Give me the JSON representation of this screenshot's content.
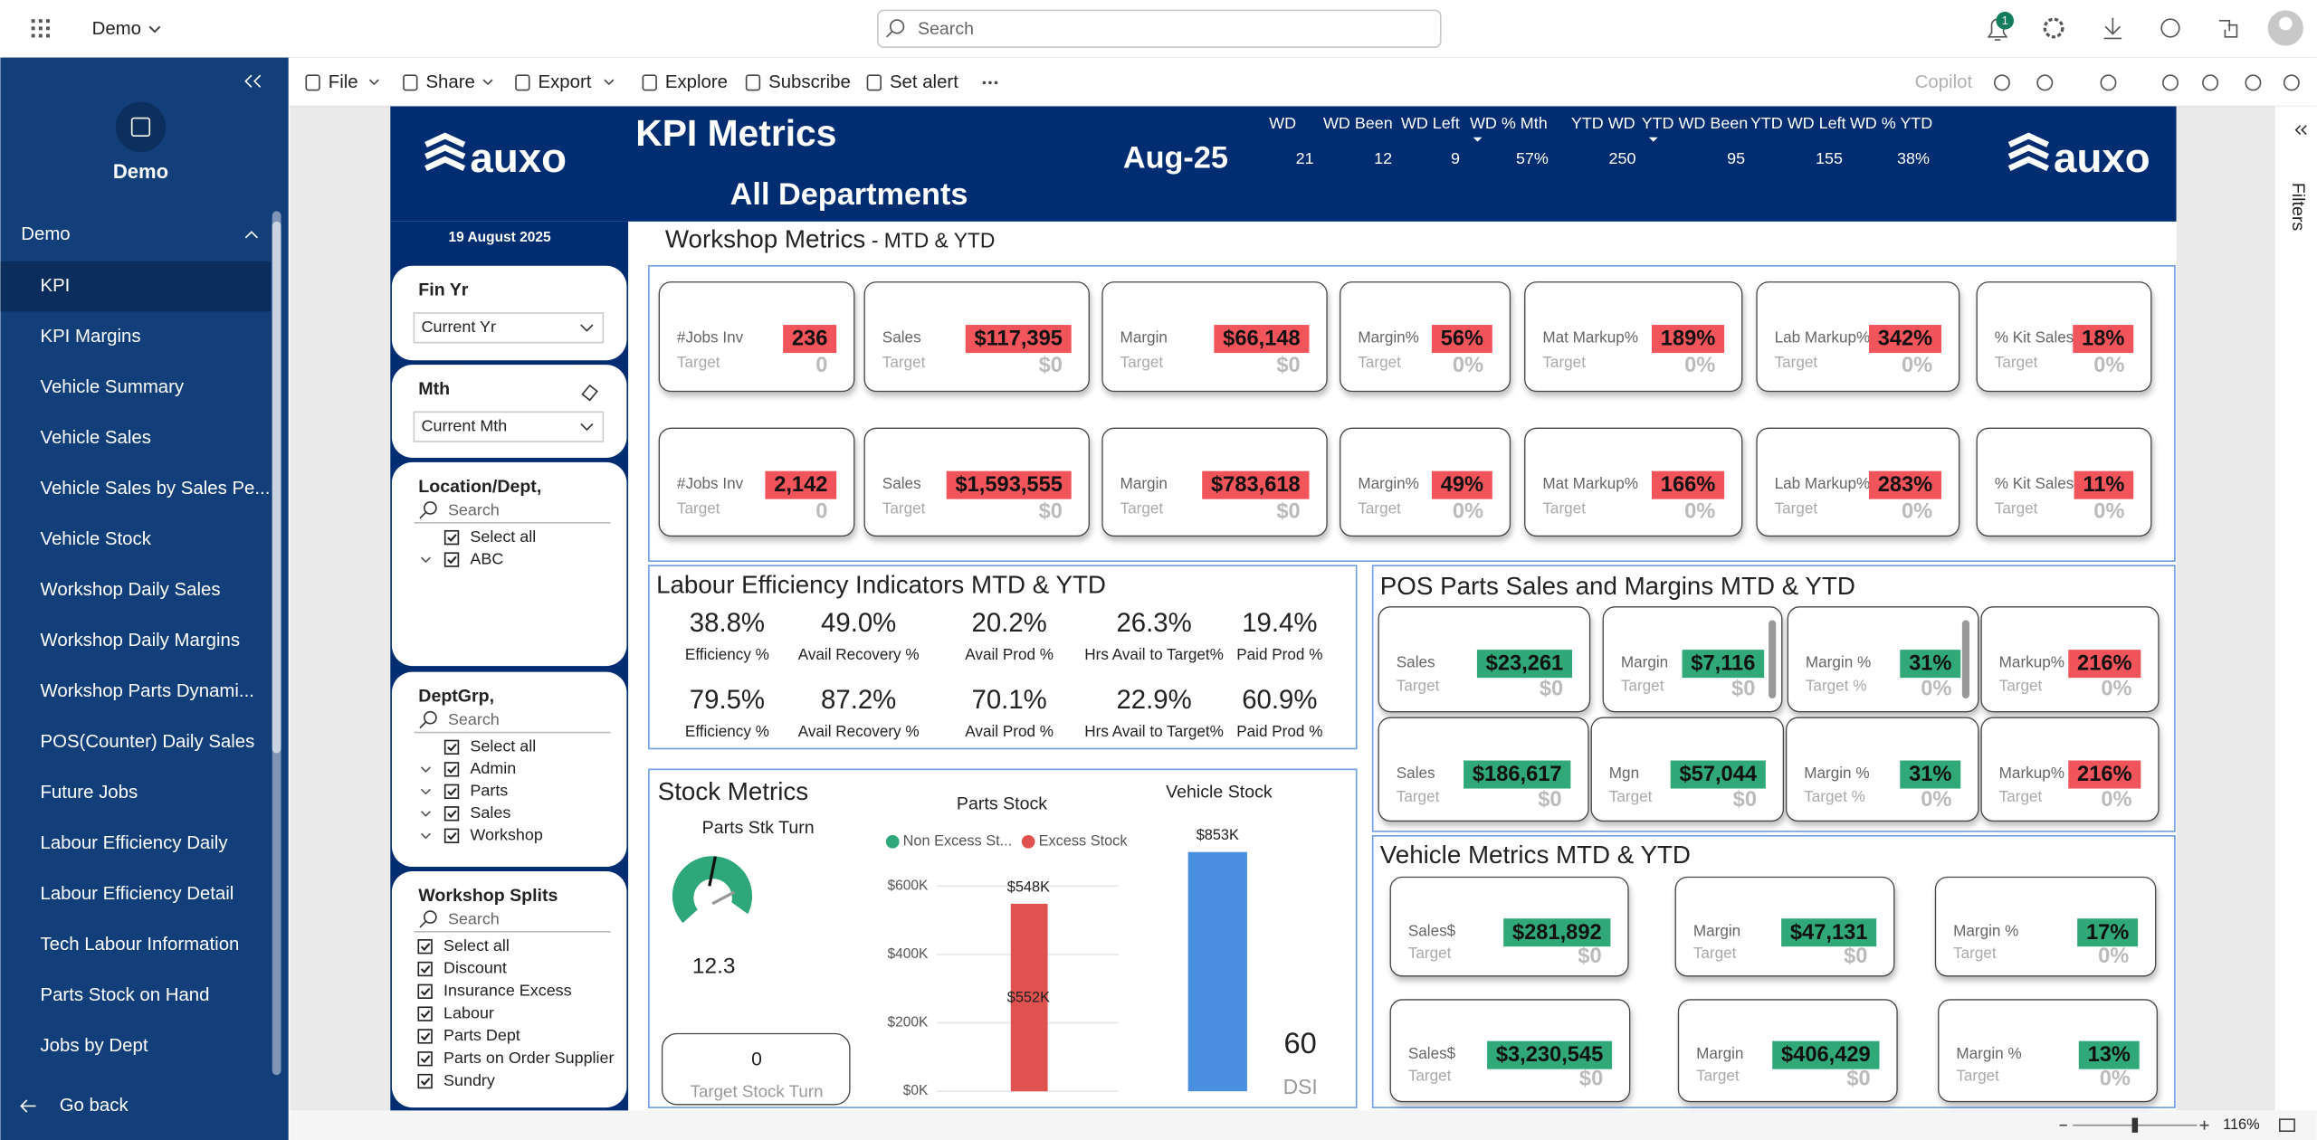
{
  "app": {
    "workspace": "Demo",
    "search": "Search",
    "notifications": 1,
    "zoom": "116%",
    "filters": "Filters",
    "toolbar": [
      "File",
      "Share",
      "Export",
      "Explore",
      "Subscribe",
      "Set alert"
    ],
    "copilot": "Copilot"
  },
  "nav": {
    "title": "Demo",
    "section": "Demo",
    "items": [
      "KPI",
      "KPI Margins",
      "Vehicle Summary",
      "Vehicle Sales",
      "Vehicle Sales by Sales Pe...",
      "Vehicle Stock",
      "Workshop Daily Sales",
      "Workshop Daily Margins",
      "Workshop Parts Dynami...",
      "POS(Counter) Daily Sales",
      "Future Jobs",
      "Labour Efficiency Daily",
      "Labour Efficiency Detail",
      "Tech Labour Information",
      "Parts Stock on Hand",
      "Jobs by Dept"
    ],
    "back": "Go back"
  },
  "report": {
    "logo": "auxo",
    "title": "KPI Metrics",
    "subtitle": "All Departments",
    "period": "Aug-25",
    "date": "19 August 2025",
    "wd": {
      "headers": [
        "WD",
        "WD Been",
        "WD Left",
        "WD % Mth",
        "YTD WD",
        "YTD WD Been",
        "YTD WD Left",
        "WD % YTD"
      ],
      "values": [
        21,
        12,
        9,
        "57%",
        250,
        95,
        155,
        "38%"
      ]
    },
    "slicers": [
      {
        "title": "Fin Yr",
        "selected": "Current Yr"
      },
      {
        "title": "Mth",
        "selected": "Current Mth"
      },
      {
        "title": "Location/Dept,",
        "search": "Search",
        "options": [
          "Select all",
          "ABC"
        ]
      },
      {
        "title": "DeptGrp,",
        "search": "Search",
        "options": [
          "Select all",
          "Admin",
          "Parts",
          "Sales",
          "Workshop"
        ]
      },
      {
        "title": "Workshop Splits",
        "search": "Search",
        "options": [
          "Select all",
          "Discount",
          "Insurance Excess",
          "Labour",
          "Parts Dept",
          "Parts on Order Supplier",
          "Sundry"
        ]
      }
    ],
    "workshop": {
      "title": "Workshop Metrics",
      "subtitle": "- MTD & YTD",
      "rows": [
        [
          {
            "label": "#Jobs Inv",
            "value": "236",
            "color": "#f2545b",
            "target_label": "Target",
            "target": "0"
          },
          {
            "label": "Sales",
            "value": "$117,395",
            "color": "#f2545b",
            "target_label": "Target",
            "target": "$0"
          },
          {
            "label": "Margin",
            "value": "$66,148",
            "color": "#f2545b",
            "target_label": "Target",
            "target": "$0"
          },
          {
            "label": "Margin%",
            "value": "56%",
            "color": "#f2545b",
            "target_label": "Target",
            "target": "0%"
          },
          {
            "label": "Mat Markup%",
            "value": "189%",
            "color": "#f2545b",
            "target_label": "Target",
            "target": "0%"
          },
          {
            "label": "Lab Markup%",
            "value": "342%",
            "color": "#f2545b",
            "target_label": "Target",
            "target": "0%"
          },
          {
            "label": "% Kit Sales",
            "value": "18%",
            "color": "#f2545b",
            "target_label": "Target",
            "target": "0%"
          }
        ],
        [
          {
            "label": "#Jobs Inv",
            "value": "2,142",
            "color": "#f2545b",
            "target_label": "Target",
            "target": "0"
          },
          {
            "label": "Sales",
            "value": "$1,593,555",
            "color": "#f2545b",
            "target_label": "Target",
            "target": "$0"
          },
          {
            "label": "Margin",
            "value": "$783,618",
            "color": "#f2545b",
            "target_label": "Target",
            "target": "$0"
          },
          {
            "label": "Margin%",
            "value": "49%",
            "color": "#f2545b",
            "target_label": "Target",
            "target": "0%"
          },
          {
            "label": "Mat Markup%",
            "value": "166%",
            "color": "#f2545b",
            "target_label": "Target",
            "target": "0%"
          },
          {
            "label": "Lab Markup%",
            "value": "283%",
            "color": "#f2545b",
            "target_label": "Target",
            "target": "0%"
          },
          {
            "label": "% Kit Sales",
            "value": "11%",
            "color": "#f2545b",
            "target_label": "Target",
            "target": "0%"
          }
        ]
      ]
    },
    "labour": {
      "title": "Labour Efficiency Indicators MTD & YTD",
      "rows": [
        [
          {
            "value": "38.8%",
            "label": "Efficiency %"
          },
          {
            "value": "49.0%",
            "label": "Avail Recovery %"
          },
          {
            "value": "20.2%",
            "label": "Avail Prod %"
          },
          {
            "value": "26.3%",
            "label": "Hrs Avail to Target%"
          },
          {
            "value": "19.4%",
            "label": "Paid Prod %"
          }
        ],
        [
          {
            "value": "79.5%",
            "label": "Efficiency %"
          },
          {
            "value": "87.2%",
            "label": "Avail Recovery %"
          },
          {
            "value": "70.1%",
            "label": "Avail Prod %"
          },
          {
            "value": "22.9%",
            "label": "Hrs Avail to Target%"
          },
          {
            "value": "60.9%",
            "label": "Paid Prod %"
          }
        ]
      ]
    },
    "pos": {
      "title": "POS Parts Sales and Margins MTD & YTD",
      "rows": [
        [
          {
            "label": "Sales",
            "value": "$23,261",
            "color": "#31a878",
            "target_label": "Target",
            "target": "$0"
          },
          {
            "label": "Margin",
            "value": "$7,116",
            "color": "#31a878",
            "target_label": "Target",
            "target": "$0"
          },
          {
            "label": "Margin %",
            "value": "31%",
            "color": "#31a878",
            "target_label": "Target %",
            "target": "0%"
          },
          {
            "label": "Markup%",
            "value": "216%",
            "color": "#f2545b",
            "target_label": "Target",
            "target": "0%"
          }
        ],
        [
          {
            "label": "Sales",
            "value": "$186,617",
            "color": "#31a878",
            "target_label": "Target",
            "target": "$0"
          },
          {
            "label": "Mgn",
            "value": "$57,044",
            "color": "#31a878",
            "target_label": "Target",
            "target": "$0"
          },
          {
            "label": "Margin %",
            "value": "31%",
            "color": "#31a878",
            "target_label": "Target %",
            "target": "0%"
          },
          {
            "label": "Markup%",
            "value": "216%",
            "color": "#f2545b",
            "target_label": "Target",
            "target": "0%"
          }
        ]
      ]
    },
    "vehicle": {
      "title": "Vehicle Metrics MTD & YTD",
      "rows": [
        [
          {
            "label": "Sales$",
            "value": "$281,892",
            "color": "#31a878",
            "target_label": "Target",
            "target": "$0"
          },
          {
            "label": "Margin",
            "value": "$47,131",
            "color": "#31a878",
            "target_label": "Target",
            "target": "$0"
          },
          {
            "label": "Margin %",
            "value": "17%",
            "color": "#31a878",
            "target_label": "Target",
            "target": "0%"
          }
        ],
        [
          {
            "label": "Sales$",
            "value": "$3,230,545",
            "color": "#31a878",
            "target_label": "Target",
            "target": "$0"
          },
          {
            "label": "Margin",
            "value": "$406,429",
            "color": "#31a878",
            "target_label": "Target",
            "target": "$0"
          },
          {
            "label": "Margin %",
            "value": "13%",
            "color": "#31a878",
            "target_label": "Target",
            "target": "0%"
          }
        ]
      ]
    },
    "stock": {
      "title": "Stock Metrics",
      "gauge": {
        "title": "Parts Stk Turn",
        "value": 12.3,
        "target": 0,
        "target_label": "Target Stock Turn"
      },
      "parts_chart": {
        "type": "bar",
        "title": "Parts Stock",
        "ylim": [
          0,
          600
        ],
        "yticks": [
          {
            "value": 0,
            "label": "$0K"
          },
          {
            "value": 200,
            "label": "$200K"
          },
          {
            "value": 400,
            "label": "$400K"
          },
          {
            "value": 600,
            "label": "$600K"
          }
        ],
        "series": [
          {
            "name": "Non Excess St...",
            "color": "#2ea77a"
          },
          {
            "name": "Excess Stock",
            "color": "#e0524f",
            "values": [
              548
            ],
            "value_labels": [
              "$548K"
            ]
          }
        ],
        "annotations": [
          "$552K"
        ]
      },
      "vehicle_chart": {
        "type": "bar",
        "title": "Vehicle Stock",
        "values": [
          853
        ],
        "value_labels": [
          "$853K"
        ],
        "color": "#4a8ee0"
      },
      "dsi": {
        "value": 60,
        "label": "DSI"
      }
    }
  }
}
